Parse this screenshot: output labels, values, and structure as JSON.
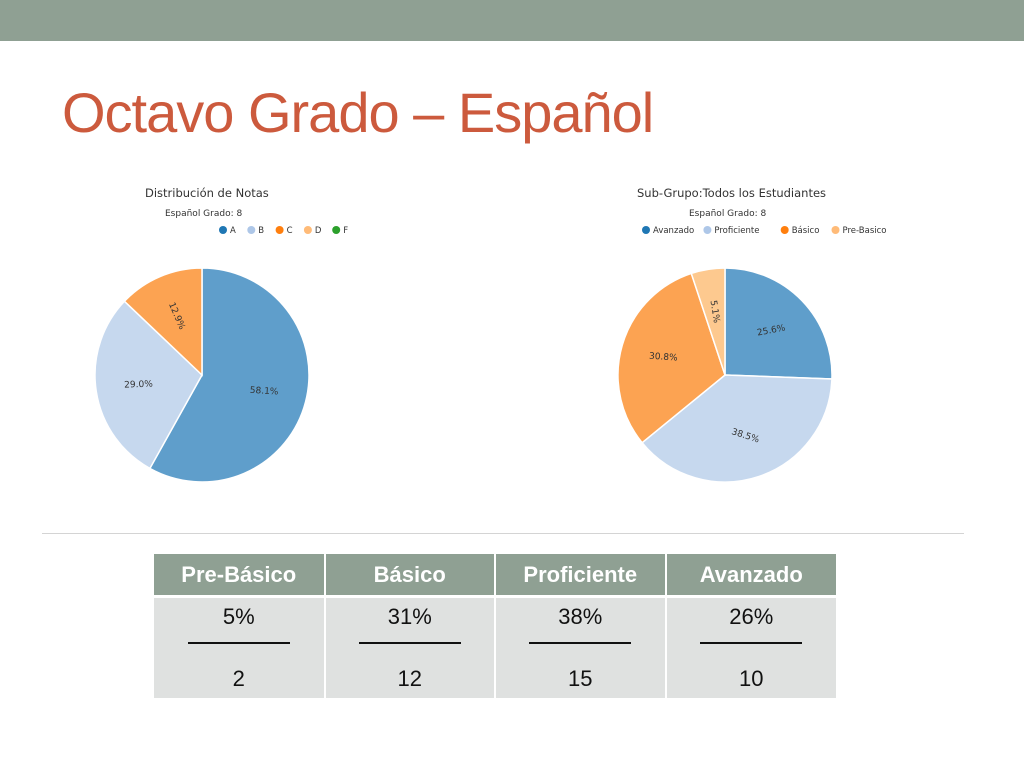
{
  "slide": {
    "title": "Octavo Grado – Español"
  },
  "colors": {
    "accent_bar": "#8fa093",
    "title": "#cc5a3d",
    "blue": "#5f9ecb",
    "light_blue": "#c6d8ee",
    "orange": "#fca352",
    "peach": "#fdc98f",
    "green": "#2ca02c",
    "dark_blue": "#1f77b4"
  },
  "chart_data": [
    {
      "type": "pie",
      "title": "Distribución de Notas",
      "subtitle": "Español Grado: 8",
      "legend": [
        {
          "name": "A",
          "color": "#1f77b4"
        },
        {
          "name": "B",
          "color": "#aec7e8"
        },
        {
          "name": "C",
          "color": "#ff7f0e"
        },
        {
          "name": "D",
          "color": "#ffbb78"
        },
        {
          "name": "F",
          "color": "#2ca02c"
        }
      ],
      "slices": [
        {
          "name": "A",
          "value": 58.1,
          "label": "58.1%",
          "color": "#5f9ecb"
        },
        {
          "name": "B",
          "value": 29.0,
          "label": "29.0%",
          "color": "#c6d8ee"
        },
        {
          "name": "C",
          "value": 12.9,
          "label": "12.9%",
          "color": "#fca352"
        }
      ]
    },
    {
      "type": "pie",
      "title": "Sub-Grupo:Todos los Estudiantes",
      "subtitle": "Español Grado: 8",
      "legend": [
        {
          "name": "Avanzado",
          "color": "#1f77b4"
        },
        {
          "name": "Proficiente",
          "color": "#aec7e8"
        },
        {
          "name": "Básico",
          "color": "#ff7f0e"
        },
        {
          "name": "Pre-Basico",
          "color": "#ffbb78"
        }
      ],
      "slices": [
        {
          "name": "Avanzado",
          "value": 25.6,
          "label": "25.6%",
          "color": "#5f9ecb"
        },
        {
          "name": "Proficiente",
          "value": 38.5,
          "label": "38.5%",
          "color": "#c6d8ee"
        },
        {
          "name": "Básico",
          "value": 30.8,
          "label": "30.8%",
          "color": "#fca352"
        },
        {
          "name": "Pre-Basico",
          "value": 5.1,
          "label": "5.1%",
          "color": "#fdc98f"
        }
      ]
    }
  ],
  "table": {
    "headers": [
      "Pre-Básico",
      "Básico",
      "Proficiente",
      "Avanzado"
    ],
    "rows": [
      [
        {
          "percent": "5%",
          "count": "2"
        },
        {
          "percent": "31%",
          "count": "12"
        },
        {
          "percent": "38%",
          "count": "15"
        },
        {
          "percent": "26%",
          "count": "10"
        }
      ]
    ]
  }
}
